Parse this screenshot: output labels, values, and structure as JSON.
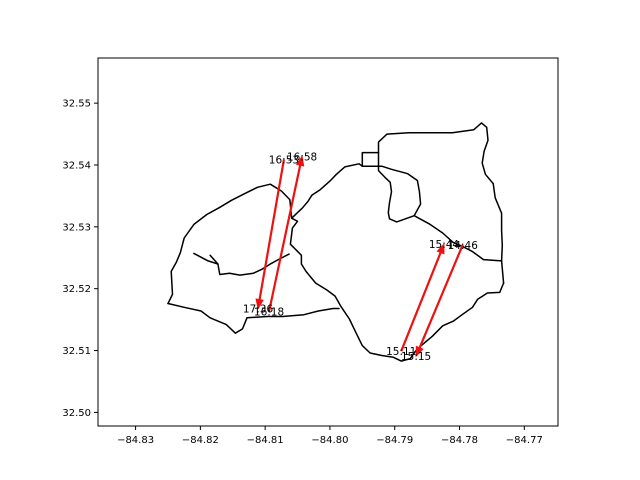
{
  "chart_data": {
    "type": "map",
    "title": "",
    "xlabel": "",
    "ylabel": "",
    "xlim": [
      -84.8358,
      -84.7648
    ],
    "ylim": [
      32.4978,
      32.5573
    ],
    "xticks": [
      -84.83,
      -84.82,
      -84.81,
      -84.8,
      -84.79,
      -84.78,
      -84.77
    ],
    "xtick_labels": [
      "−84.83",
      "−84.82",
      "−84.81",
      "−84.80",
      "−84.79",
      "−84.78",
      "−84.77"
    ],
    "yticks": [
      32.5,
      32.51,
      32.52,
      32.53,
      32.54,
      32.55
    ],
    "ytick_labels": [
      "32.50",
      "32.51",
      "32.52",
      "32.53",
      "32.54",
      "32.55"
    ],
    "grid": false,
    "arrow_color": "#ee1111",
    "boundary_color": "#000000",
    "arrows": [
      {
        "from": [
          -84.8071,
          32.5409
        ],
        "to": [
          -84.8111,
          32.5168
        ],
        "start_label": "16:53",
        "end_label": "17:36"
      },
      {
        "from": [
          -84.8094,
          32.5163
        ],
        "to": [
          -84.8043,
          32.5414
        ],
        "start_label": "16:18",
        "end_label": "16:58"
      },
      {
        "from": [
          -84.789,
          32.5099
        ],
        "to": [
          -84.7824,
          32.5272
        ],
        "start_label": "15:11",
        "end_label": "15:44"
      },
      {
        "from": [
          -84.7795,
          32.5271
        ],
        "to": [
          -84.7867,
          32.5091
        ],
        "start_label": "14:46",
        "end_label": "15:15"
      }
    ],
    "polygons": [
      [
        [
          -84.825,
          32.5176
        ],
        [
          -84.8225,
          32.517
        ],
        [
          -84.8199,
          32.5164
        ],
        [
          -84.8185,
          32.5153
        ],
        [
          -84.816,
          32.5142
        ],
        [
          -84.8146,
          32.5128
        ],
        [
          -84.8135,
          32.5135
        ],
        [
          -84.8128,
          32.5153
        ],
        [
          -84.8097,
          32.5155
        ],
        [
          -84.8073,
          32.5155
        ],
        [
          -84.804,
          32.5158
        ],
        [
          -84.8018,
          32.5164
        ],
        [
          -84.7995,
          32.5168
        ],
        [
          -84.7986,
          32.5168
        ]
      ],
      [
        [
          -84.825,
          32.5176
        ],
        [
          -84.8243,
          32.5191
        ],
        [
          -84.8245,
          32.5228
        ],
        [
          -84.8237,
          32.5243
        ],
        [
          -84.8231,
          32.5258
        ],
        [
          -84.8225,
          32.5282
        ],
        [
          -84.821,
          32.5304
        ],
        [
          -84.819,
          32.532
        ],
        [
          -84.8171,
          32.5331
        ],
        [
          -84.8152,
          32.5343
        ],
        [
          -84.8133,
          32.5353
        ],
        [
          -84.8112,
          32.5364
        ],
        [
          -84.8092,
          32.5369
        ],
        [
          -84.8075,
          32.5358
        ],
        [
          -84.8062,
          32.5344
        ],
        [
          -84.8059,
          32.5314
        ],
        [
          -84.805,
          32.5309
        ],
        [
          -84.8058,
          32.5298
        ],
        [
          -84.8061,
          32.5272
        ],
        [
          -84.8044,
          32.5254
        ],
        [
          -84.8044,
          32.524
        ],
        [
          -84.8037,
          32.5228
        ],
        [
          -84.8022,
          32.5209
        ],
        [
          -84.8005,
          32.5198
        ],
        [
          -84.7992,
          32.5188
        ],
        [
          -84.7983,
          32.5171
        ],
        [
          -84.797,
          32.5151
        ],
        [
          -84.796,
          32.5129
        ],
        [
          -84.795,
          32.5108
        ],
        [
          -84.7938,
          32.5096
        ],
        [
          -84.792,
          32.5092
        ],
        [
          -84.7902,
          32.5089
        ],
        [
          -84.789,
          32.5083
        ],
        [
          -84.7876,
          32.5087
        ],
        [
          -84.7868,
          32.5099
        ],
        [
          -84.7858,
          32.5109
        ],
        [
          -84.7842,
          32.5123
        ],
        [
          -84.7826,
          32.514
        ],
        [
          -84.7809,
          32.5148
        ],
        [
          -84.7796,
          32.5158
        ],
        [
          -84.778,
          32.517
        ],
        [
          -84.7772,
          32.5183
        ],
        [
          -84.7757,
          32.5193
        ],
        [
          -84.7738,
          32.5194
        ],
        [
          -84.7732,
          32.5209
        ]
      ],
      [
        [
          -84.821,
          32.5257
        ],
        [
          -84.8188,
          32.5245
        ],
        [
          -84.8173,
          32.524
        ],
        [
          -84.817,
          32.5223
        ],
        [
          -84.8155,
          32.5225
        ],
        [
          -84.8139,
          32.5222
        ],
        [
          -84.8118,
          32.5225
        ],
        [
          -84.8104,
          32.5232
        ],
        [
          -84.809,
          32.5241
        ],
        [
          -84.8078,
          32.5248
        ],
        [
          -84.8063,
          32.5256
        ]
      ],
      [
        [
          -84.8059,
          32.5314
        ],
        [
          -84.8051,
          32.5322
        ],
        [
          -84.8043,
          32.533
        ],
        [
          -84.8034,
          32.5341
        ],
        [
          -84.8028,
          32.5351
        ],
        [
          -84.8015,
          32.536
        ],
        [
          -84.8,
          32.5374
        ],
        [
          -84.799,
          32.5385
        ],
        [
          -84.7977,
          32.5397
        ],
        [
          -84.7955,
          32.5402
        ],
        [
          -84.795,
          32.5398
        ],
        [
          -84.795,
          32.542
        ],
        [
          -84.7925,
          32.542
        ],
        [
          -84.7925,
          32.5437
        ],
        [
          -84.7912,
          32.545
        ],
        [
          -84.7878,
          32.5452
        ],
        [
          -84.7841,
          32.5452
        ],
        [
          -84.7811,
          32.5452
        ],
        [
          -84.7778,
          32.5457
        ],
        [
          -84.7766,
          32.5468
        ],
        [
          -84.7758,
          32.5461
        ],
        [
          -84.7756,
          32.544
        ],
        [
          -84.7762,
          32.5422
        ],
        [
          -84.7765,
          32.5403
        ],
        [
          -84.776,
          32.5385
        ],
        [
          -84.7748,
          32.537
        ],
        [
          -84.7745,
          32.5347
        ],
        [
          -84.7735,
          32.5322
        ],
        [
          -84.7735,
          32.5294
        ],
        [
          -84.7734,
          32.527
        ],
        [
          -84.7735,
          32.5245
        ],
        [
          -84.7732,
          32.5209
        ]
      ],
      [
        [
          -84.795,
          32.5398
        ],
        [
          -84.792,
          32.5398
        ],
        [
          -84.7905,
          32.5393
        ],
        [
          -84.788,
          32.5386
        ],
        [
          -84.7865,
          32.5375
        ],
        [
          -84.7862,
          32.5357
        ],
        [
          -84.786,
          32.5337
        ],
        [
          -84.787,
          32.5318
        ],
        [
          -84.7897,
          32.5308
        ],
        [
          -84.7908,
          32.5313
        ],
        [
          -84.791,
          32.5323
        ],
        [
          -84.7908,
          32.5339
        ],
        [
          -84.7905,
          32.5357
        ],
        [
          -84.7907,
          32.5372
        ],
        [
          -84.7915,
          32.538
        ],
        [
          -84.7925,
          32.5391
        ],
        [
          -84.7925,
          32.542
        ]
      ],
      [
        [
          -84.787,
          32.5318
        ],
        [
          -84.7847,
          32.5305
        ],
        [
          -84.7826,
          32.529
        ],
        [
          -84.781,
          32.5275
        ],
        [
          -84.7795,
          32.5268
        ],
        [
          -84.778,
          32.526
        ],
        [
          -84.7763,
          32.5247
        ],
        [
          -84.7735,
          32.5245
        ]
      ],
      [
        [
          -84.8185,
          32.5254
        ],
        [
          -84.8173,
          32.524
        ]
      ]
    ]
  }
}
